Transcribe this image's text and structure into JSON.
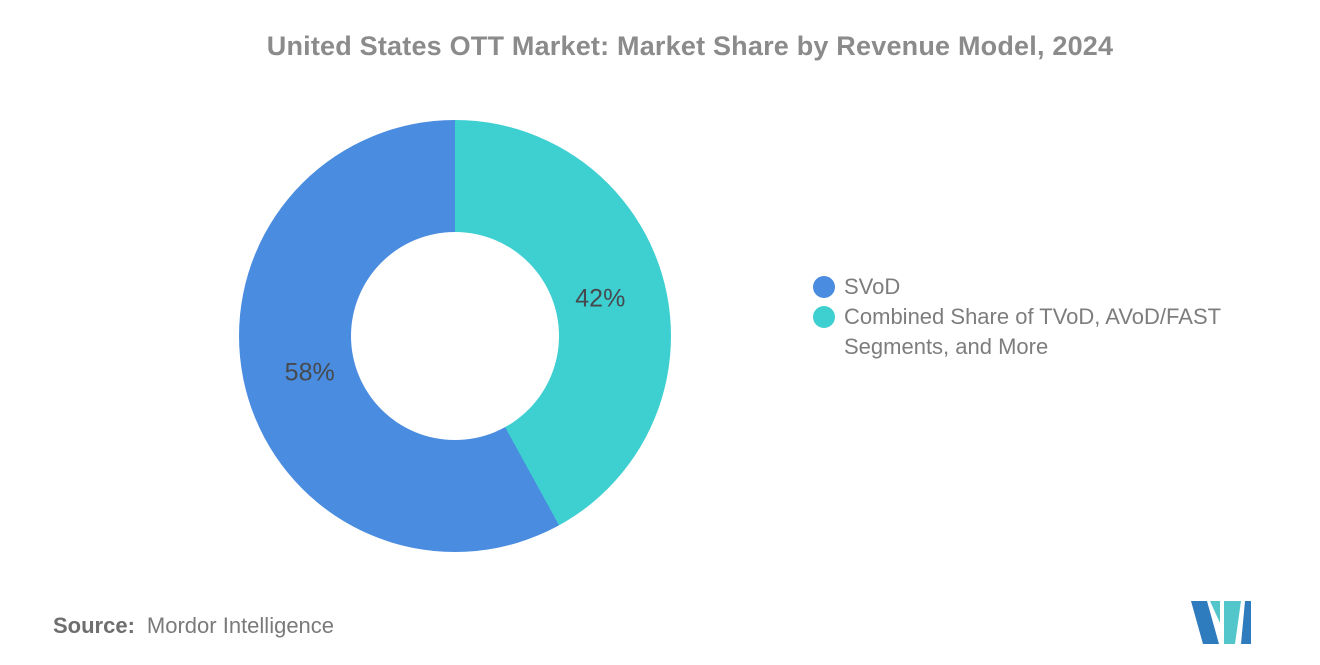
{
  "title": "United States OTT Market: Market Share by Revenue Model, 2024",
  "chart_data": {
    "type": "pie",
    "subtype": "donut",
    "title": "United States OTT Market: Market Share by Revenue Model, 2024",
    "unit": "%",
    "total": 100,
    "slices": [
      {
        "name": "SVoD",
        "value": 58,
        "label": "58%",
        "color": "#4a8cdf"
      },
      {
        "name": "Combined Share of TVoD, AVoD/FAST Segments, and More",
        "value": 42,
        "label": "42%",
        "color": "#3ecfd1"
      }
    ],
    "render_order": [
      1,
      0
    ],
    "start_angle_deg": 0,
    "clockwise": true,
    "donut_hole_ratio": 0.48,
    "legend_position": "right",
    "grid": false
  },
  "legend": {
    "items": [
      {
        "label": "SVoD",
        "color": "#4a8cdf"
      },
      {
        "label": "Combined Share of TVoD, AVoD/FAST Segments, and More",
        "color": "#3ecfd1"
      }
    ]
  },
  "source": {
    "label": "Source:",
    "value": "Mordor Intelligence"
  },
  "logo": {
    "name": "mordor-intelligence-logo",
    "colors": {
      "blue": "#2e7cbe",
      "teal": "#52c6cb"
    }
  }
}
